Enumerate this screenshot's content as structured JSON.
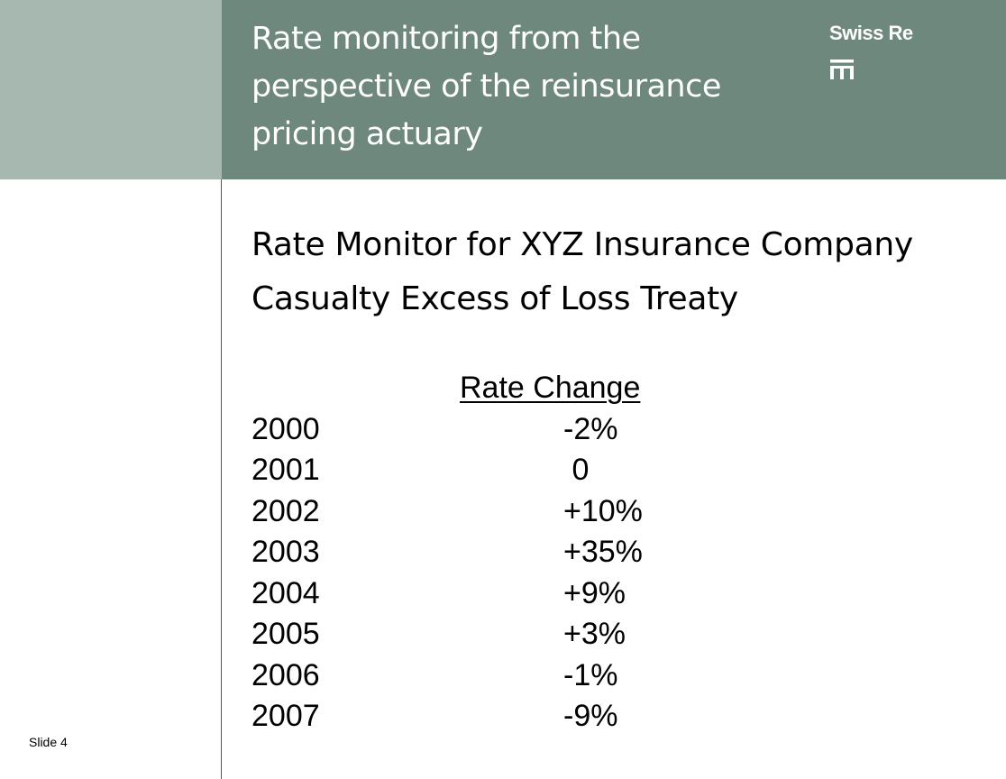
{
  "header": {
    "title_lines": [
      "Rate monitoring from the",
      "perspective of the reinsurance",
      "pricing actuary"
    ],
    "brand_name": "Swiss Re"
  },
  "main": {
    "heading_lines": [
      "Rate Monitor for XYZ Insurance Company",
      "Casualty Excess of Loss Treaty"
    ],
    "column_header": "Rate Change",
    "rows": [
      {
        "year": "2000",
        "change": "-2%"
      },
      {
        "year": "2001",
        "change": " 0"
      },
      {
        "year": "2002",
        "change": "+10%"
      },
      {
        "year": "2003",
        "change": "+35%"
      },
      {
        "year": "2004",
        "change": "+9%"
      },
      {
        "year": "2005",
        "change": "+3%"
      },
      {
        "year": "2006",
        "change": "-1%"
      },
      {
        "year": "2007",
        "change": "-9%"
      }
    ]
  },
  "footer": {
    "slide_label": "Slide 4"
  },
  "colors": {
    "header_band": "#6f887d",
    "left_band": "#a7b8b1",
    "header_text": "#ffffff",
    "body_text": "#000000"
  }
}
